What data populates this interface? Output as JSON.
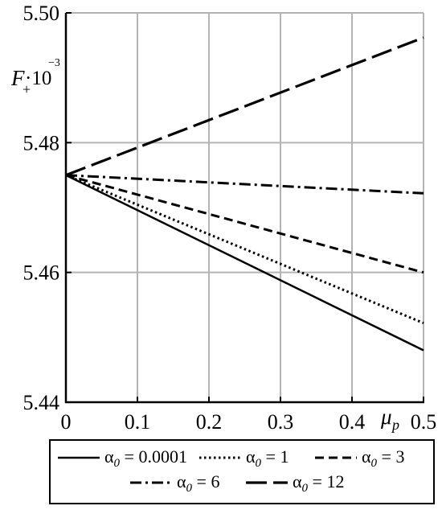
{
  "chart_data": {
    "type": "line",
    "ylabel": {
      "main": "F",
      "sub": "+",
      "multiplier": "·10",
      "exponent": "−3"
    },
    "xlabel": {
      "main": "μ",
      "sub": "p"
    },
    "xlim": [
      0,
      0.5
    ],
    "ylim": [
      5.44,
      5.5
    ],
    "x_ticks": [
      "0",
      "0.1",
      "0.2",
      "0.3",
      "0.4",
      "0.5"
    ],
    "x_tick_values": [
      0,
      0.1,
      0.2,
      0.3,
      0.4,
      0.5
    ],
    "y_ticks": [
      "5.44",
      "5.46",
      "5.48",
      "5.50"
    ],
    "y_tick_values": [
      5.44,
      5.46,
      5.48,
      5.5
    ],
    "grid": true,
    "legend_position": "bottom",
    "series": [
      {
        "name": "α0 = 0.0001",
        "label_greek": "α",
        "label_sub": "0",
        "label_value": " = 0.0001",
        "dash": "solid",
        "x": [
          0,
          0.5
        ],
        "values": [
          5.475,
          5.448
        ]
      },
      {
        "name": "α0 = 1",
        "label_greek": "α",
        "label_sub": "0",
        "label_value": " = 1",
        "dash": "dotted",
        "x": [
          0,
          0.5
        ],
        "values": [
          5.475,
          5.4522
        ]
      },
      {
        "name": "α0 = 3",
        "label_greek": "α",
        "label_sub": "0",
        "label_value": " = 3",
        "dash": "dashed",
        "x": [
          0,
          0.5
        ],
        "values": [
          5.475,
          5.46
        ]
      },
      {
        "name": "α0 = 6",
        "label_greek": "α",
        "label_sub": "0",
        "label_value": " = 6",
        "dash": "dashdot",
        "x": [
          0,
          0.5
        ],
        "values": [
          5.475,
          5.4722
        ]
      },
      {
        "name": "α0 = 12",
        "label_greek": "α",
        "label_sub": "0",
        "label_value": " = 12",
        "dash": "longdash",
        "x": [
          0,
          0.5
        ],
        "values": [
          5.475,
          5.4962
        ]
      }
    ],
    "colors": {
      "line": "#000000",
      "grid": "#b4b4b4",
      "axis": "#000000"
    }
  }
}
